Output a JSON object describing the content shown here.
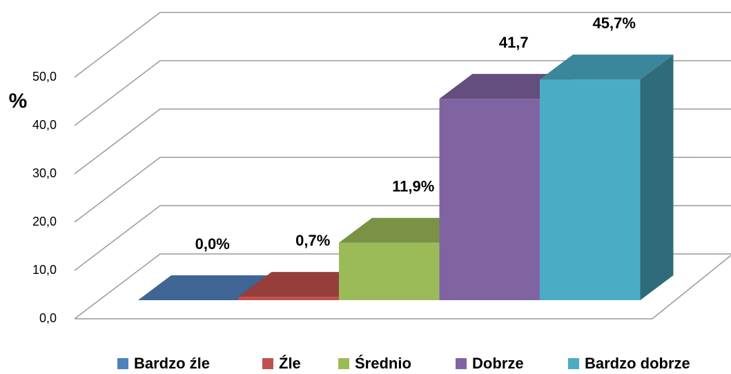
{
  "chart_data": {
    "type": "bar3d",
    "y_label": "%",
    "categories": [
      "Bardzo źle",
      "Źle",
      "Średnio",
      "Dobrze",
      "Bardzo dobrze"
    ],
    "values": [
      0.0,
      0.7,
      11.9,
      41.7,
      45.7
    ],
    "value_labels": [
      "0,0%",
      "0,7%",
      "11,9%",
      "41,7",
      "45,7%"
    ],
    "colors": [
      "#4f81bd",
      "#c0504d",
      "#9bbb59",
      "#8064a2",
      "#4bacc6"
    ],
    "ylim": [
      0,
      50
    ],
    "yticks": [
      {
        "value": 0,
        "label": "0,0"
      },
      {
        "value": 10,
        "label": "10,0"
      },
      {
        "value": 20,
        "label": "20,0"
      },
      {
        "value": 30,
        "label": "30,0"
      },
      {
        "value": 40,
        "label": "40,0"
      },
      {
        "value": 50,
        "label": "50,0"
      }
    ],
    "grid": true,
    "legend": "bottom"
  }
}
